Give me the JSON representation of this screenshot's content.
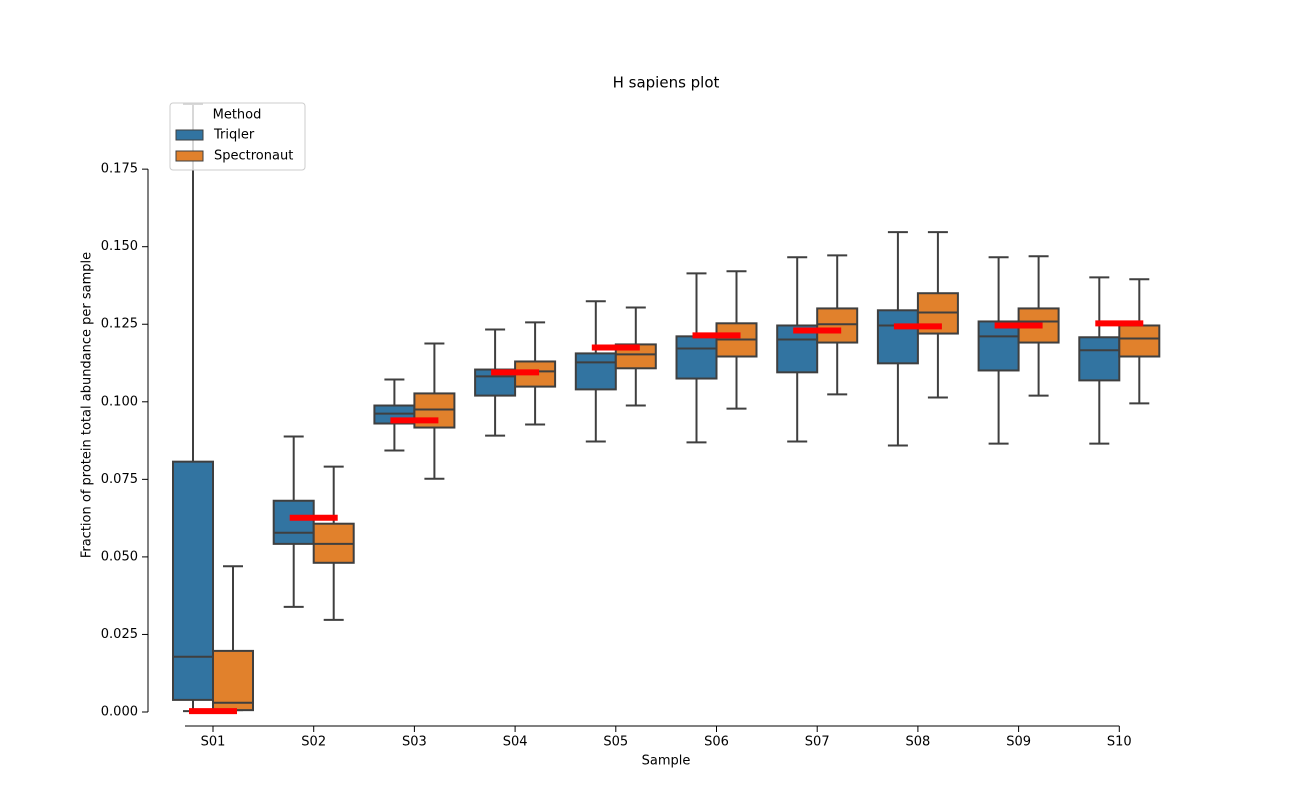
{
  "chart_data": {
    "type": "box",
    "title": "H sapiens plot",
    "xlabel": "Sample",
    "ylabel": "Fraction of protein total abundance per sample",
    "categories": [
      "S01",
      "S02",
      "S03",
      "S04",
      "S05",
      "S06",
      "S07",
      "S08",
      "S09",
      "S10"
    ],
    "legend_title": "Method",
    "legend_loc": "upper left",
    "series": [
      {
        "name": "Triqler",
        "color": "#3274a1",
        "low": [
          0.0003,
          0.0339,
          0.0843,
          0.0891,
          0.0872,
          0.0869,
          0.0872,
          0.0859,
          0.0865,
          0.0865
        ],
        "q1": [
          0.0039,
          0.0542,
          0.093,
          0.102,
          0.104,
          0.1075,
          0.1095,
          0.1124,
          0.1101,
          0.1069
        ],
        "median": [
          0.0178,
          0.0578,
          0.0962,
          0.1082,
          0.1127,
          0.1172,
          0.1201,
          0.1246,
          0.1211,
          0.1166
        ],
        "q3": [
          0.0807,
          0.0681,
          0.0988,
          0.1104,
          0.1156,
          0.1211,
          0.1246,
          0.1295,
          0.1259,
          0.1208
        ],
        "high": [
          0.196,
          0.0888,
          0.1072,
          0.1233,
          0.1324,
          0.1414,
          0.1466,
          0.1547,
          0.1466,
          0.1401
        ]
      },
      {
        "name": "Spectronaut",
        "color": "#e1812c",
        "low": [
          0.0006,
          0.0297,
          0.0752,
          0.0927,
          0.0988,
          0.0978,
          0.1024,
          0.1014,
          0.102,
          0.0995
        ],
        "q1": [
          0.0006,
          0.0481,
          0.0917,
          0.1049,
          0.1108,
          0.1146,
          0.1191,
          0.122,
          0.1191,
          0.1146
        ],
        "median": [
          0.003,
          0.0542,
          0.0975,
          0.1098,
          0.1153,
          0.1201,
          0.125,
          0.1288,
          0.1259,
          0.1204
        ],
        "q3": [
          0.0197,
          0.0607,
          0.1027,
          0.113,
          0.1185,
          0.1253,
          0.1301,
          0.135,
          0.1301,
          0.1246
        ],
        "high": [
          0.047,
          0.0791,
          0.1188,
          0.1256,
          0.1304,
          0.1421,
          0.1472,
          0.1547,
          0.1469,
          0.1395
        ]
      }
    ],
    "reference_values": [
      0.0003,
      0.0626,
      0.094,
      0.1095,
      0.1175,
      0.1214,
      0.123,
      0.1243,
      0.1246,
      0.1253
    ],
    "reference_color": "#ff0000",
    "ylim": [
      0,
      0.196
    ],
    "yticks": [
      {
        "value": 0,
        "label": "0.000"
      },
      {
        "value": 0.025,
        "label": "0.025"
      },
      {
        "value": 0.05,
        "label": "0.050"
      },
      {
        "value": 0.075,
        "label": "0.075"
      },
      {
        "value": 0.1,
        "label": "0.100"
      },
      {
        "value": 0.125,
        "label": "0.125"
      },
      {
        "value": 0.15,
        "label": "0.150"
      },
      {
        "value": 0.175,
        "label": "0.175"
      }
    ]
  }
}
